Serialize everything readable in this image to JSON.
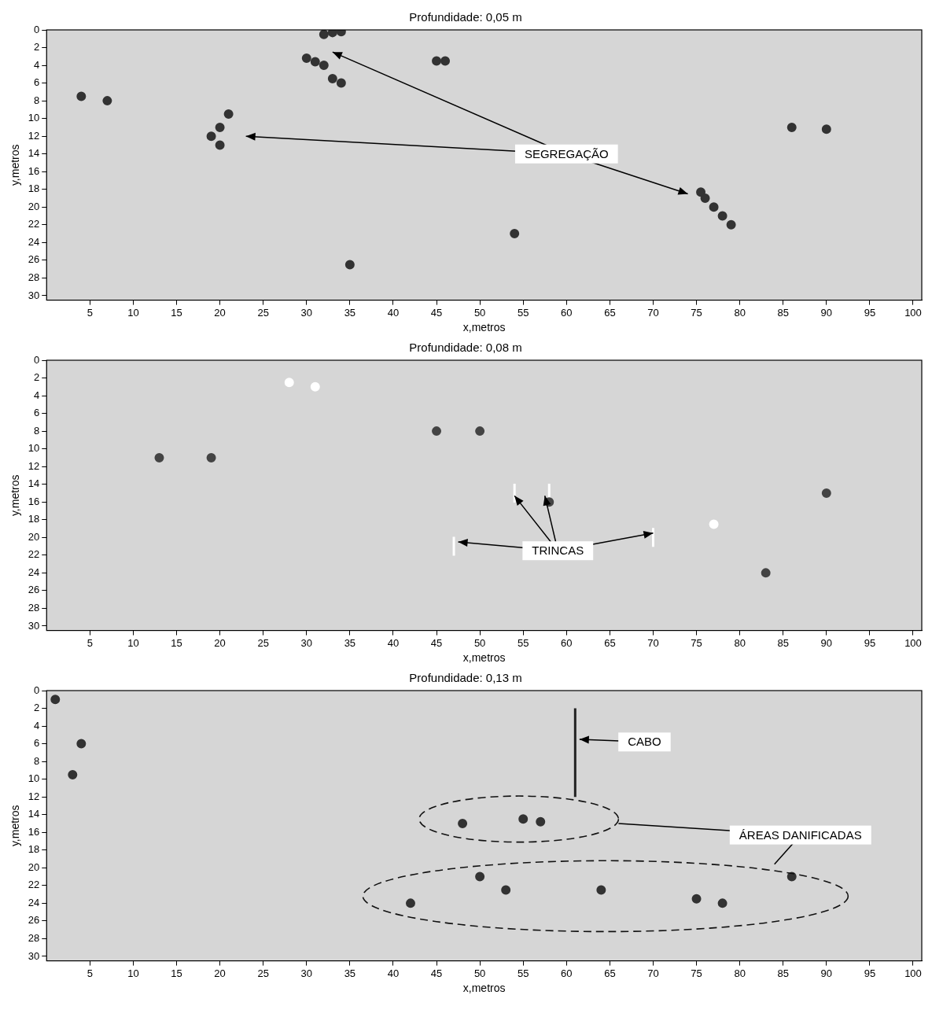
{
  "chart_data": [
    {
      "type": "scatter",
      "title": "Profundidade: 0,05 m",
      "xlabel": "x,metros",
      "ylabel": "y,metros",
      "xlim": [
        0,
        101
      ],
      "xticks": [
        5,
        10,
        15,
        20,
        25,
        30,
        35,
        40,
        45,
        50,
        55,
        60,
        65,
        70,
        75,
        80,
        85,
        90,
        95,
        100
      ],
      "ylim": [
        0,
        30.5
      ],
      "yticks": [
        0,
        2,
        4,
        6,
        8,
        10,
        12,
        14,
        16,
        18,
        20,
        22,
        24,
        26,
        28,
        30
      ],
      "grid": false,
      "marks": [
        {
          "type": "scatter",
          "color": "#333333",
          "marker": "circle",
          "x": [
            32,
            33,
            34,
            30,
            31,
            32,
            33,
            34,
            21,
            20,
            19,
            20,
            75.5,
            76,
            77,
            78,
            79,
            45,
            46,
            86,
            90,
            4,
            7,
            35,
            54
          ],
          "y": [
            0.5,
            0.3,
            0.2,
            3.2,
            3.6,
            4,
            5.5,
            6,
            9.5,
            11,
            12,
            13,
            18.3,
            19,
            20,
            21,
            22,
            3.5,
            3.5,
            11,
            11.2,
            7.5,
            8,
            26.5,
            23
          ]
        }
      ],
      "ellipses": [],
      "annotations": [
        {
          "text": "SEGREGAÇÃO",
          "x": 60,
          "y": 14,
          "marker": "arrow",
          "line_style": "solid",
          "targets": [
            [
              33,
              2.5
            ],
            [
              23,
              12
            ],
            [
              74,
              18.5
            ]
          ]
        }
      ]
    },
    {
      "type": "scatter",
      "title": "Profundidade: 0,08 m",
      "xlabel": "x,metros",
      "ylabel": "y,metros",
      "xlim": [
        0,
        101
      ],
      "xticks": [
        5,
        10,
        15,
        20,
        25,
        30,
        35,
        40,
        45,
        50,
        55,
        60,
        65,
        70,
        75,
        80,
        85,
        90,
        95,
        100
      ],
      "ylim": [
        0,
        30.5
      ],
      "yticks": [
        0,
        2,
        4,
        6,
        8,
        10,
        12,
        14,
        16,
        18,
        20,
        22,
        24,
        26,
        28,
        30
      ],
      "grid": false,
      "marks": [
        {
          "type": "scatter",
          "color": "#444444",
          "marker": "circle",
          "x": [
            45,
            50,
            90,
            19,
            13,
            58,
            83
          ],
          "y": [
            8,
            8,
            15,
            11,
            11,
            16,
            24
          ]
        },
        {
          "type": "scatter",
          "color": "#ffffff",
          "marker": "circle",
          "x": [
            77,
            31,
            28
          ],
          "y": [
            18.5,
            3,
            2.5
          ]
        },
        {
          "type": "scatter",
          "color": "#ffffff",
          "marker": "line",
          "x": [
            54,
            58,
            47,
            70
          ],
          "y": [
            15,
            15,
            21,
            20
          ]
        }
      ],
      "ellipses": [],
      "annotations": [
        {
          "text": "TRINCAS",
          "x": 59,
          "y": 21.5,
          "marker": "arrow",
          "line_style": "solid",
          "targets": [
            [
              54,
              15.3
            ],
            [
              57.5,
              15.3
            ],
            [
              47.5,
              20.5
            ],
            [
              70,
              19.5
            ]
          ]
        }
      ]
    },
    {
      "type": "scatter",
      "title": "Profundidade: 0,13 m",
      "xlabel": "x,metros",
      "ylabel": "y,metros",
      "xlim": [
        0,
        101
      ],
      "xticks": [
        5,
        10,
        15,
        20,
        25,
        30,
        35,
        40,
        45,
        50,
        55,
        60,
        65,
        70,
        75,
        80,
        85,
        90,
        95,
        100
      ],
      "ylim": [
        0,
        30.5
      ],
      "yticks": [
        0,
        2,
        4,
        6,
        8,
        10,
        12,
        14,
        16,
        18,
        20,
        22,
        24,
        26,
        28,
        30
      ],
      "grid": false,
      "marks": [
        {
          "type": "line",
          "color": "#222222",
          "marker": "none",
          "x": [
            61,
            61
          ],
          "y": [
            2,
            12
          ]
        },
        {
          "type": "scatter",
          "color": "#333333",
          "marker": "circle",
          "x": [
            55,
            48,
            53,
            75,
            42,
            64,
            86,
            50,
            57,
            78,
            4,
            3,
            1
          ],
          "y": [
            14.5,
            15,
            22.5,
            23.5,
            24,
            22.5,
            21,
            21,
            14.8,
            24,
            6,
            9.5,
            1
          ]
        }
      ],
      "ellipses": [
        {
          "x": 54.5,
          "y": 14.5,
          "rx": 11.5,
          "ry": 2.6
        },
        {
          "x": 64.5,
          "y": 23.2,
          "rx": 28,
          "ry": 4
        }
      ],
      "annotations": [
        {
          "text": "CABO",
          "x": 69,
          "y": 5.8,
          "marker": "arrow",
          "line_style": "solid",
          "targets": [
            [
              61.5,
              5.5
            ]
          ]
        },
        {
          "text": "ÁREAS DANIFICADAS",
          "x": 87,
          "y": 16.3,
          "marker": "none",
          "line_style": "solid",
          "targets": [
            [
              66,
              15
            ],
            [
              84,
              19.6
            ]
          ]
        }
      ]
    }
  ]
}
